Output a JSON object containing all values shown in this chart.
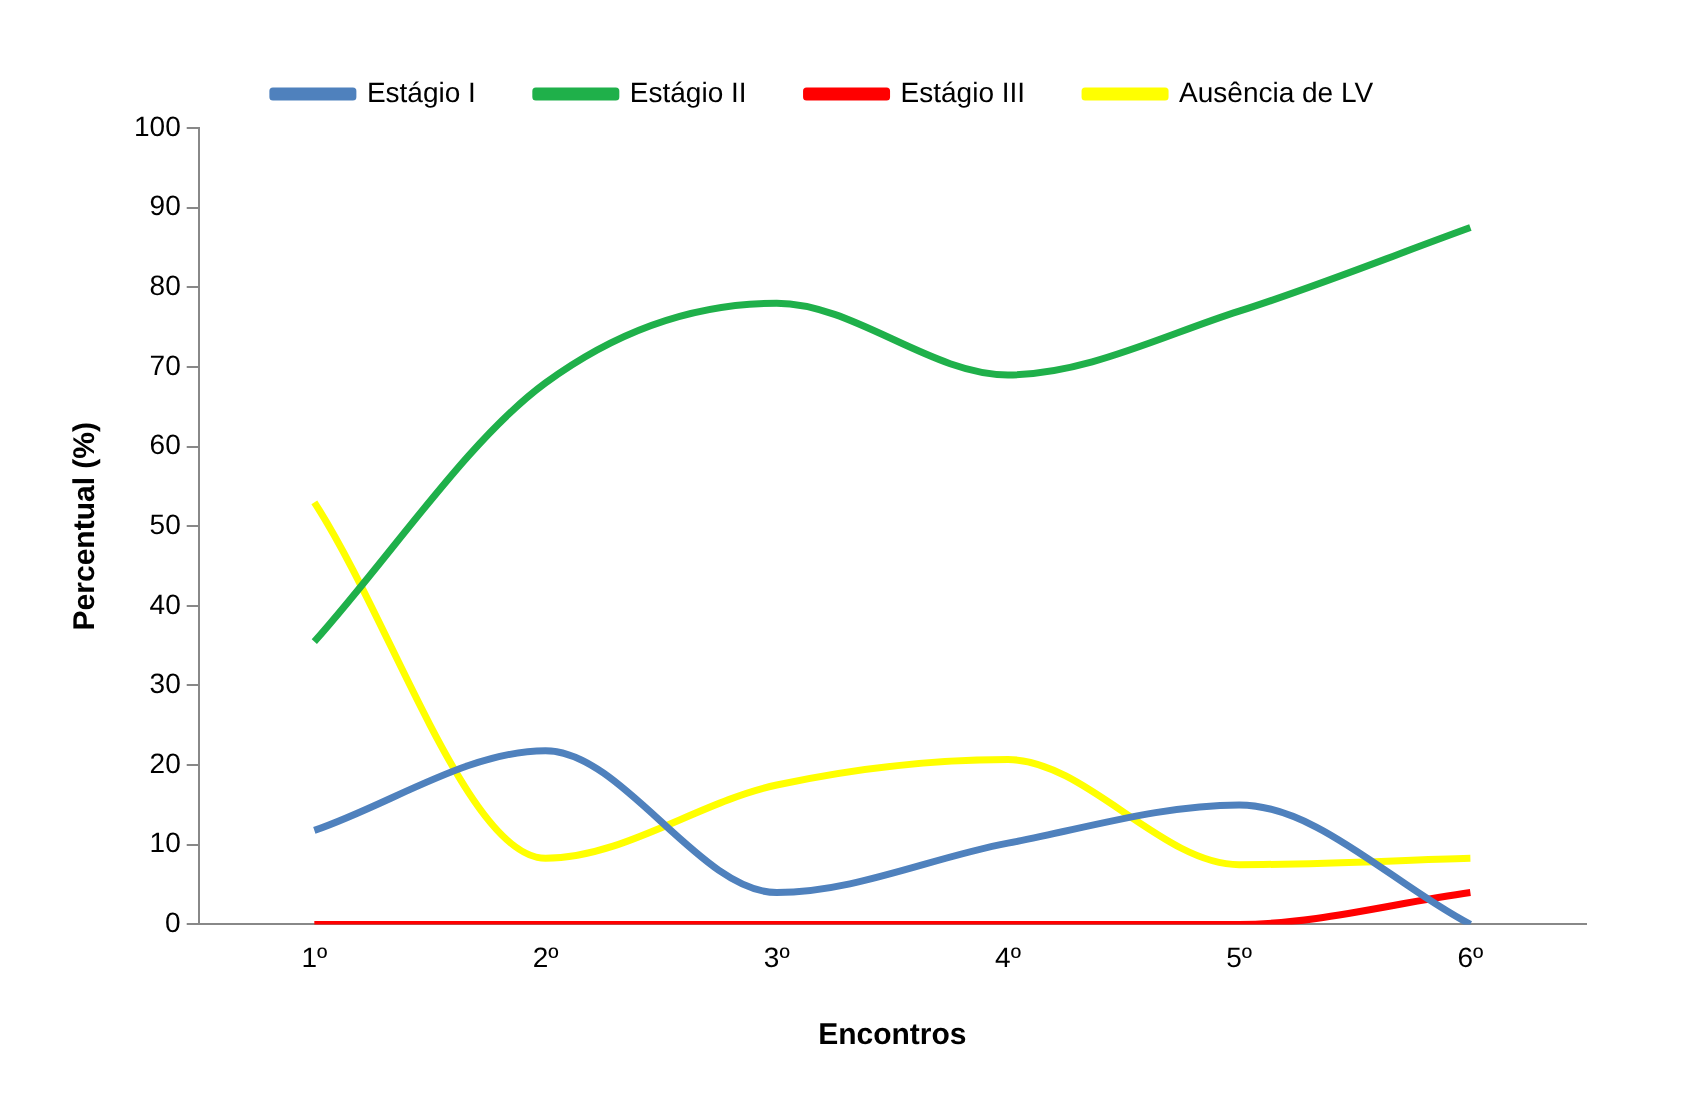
{
  "chart_data": {
    "type": "line",
    "xlabel": "Encontros",
    "ylabel": "Percentual (%)",
    "categories": [
      "1º",
      "2º",
      "3º",
      "4º",
      "5º",
      "6º"
    ],
    "series": [
      {
        "name": "Estágio I",
        "color": "#4f81bd",
        "values": [
          11.8,
          21.8,
          4,
          10.2,
          15,
          0
        ]
      },
      {
        "name": "Estágio II",
        "color": "#1fb04a",
        "values": [
          35.5,
          68,
          78,
          69,
          77,
          87.5
        ]
      },
      {
        "name": "Estágio III",
        "color": "#ff0000",
        "values": [
          0,
          0,
          0,
          0,
          0,
          4
        ]
      },
      {
        "name": "Ausência de LV",
        "color": "#ffff00",
        "values": [
          53,
          8.3,
          17.5,
          20.7,
          7.5,
          8.3
        ]
      }
    ],
    "ylim": [
      0,
      100
    ],
    "yticks": [
      0,
      10,
      20,
      30,
      40,
      50,
      60,
      70,
      80,
      90,
      100
    ],
    "grid": false,
    "legend": "top",
    "marker": "none"
  }
}
